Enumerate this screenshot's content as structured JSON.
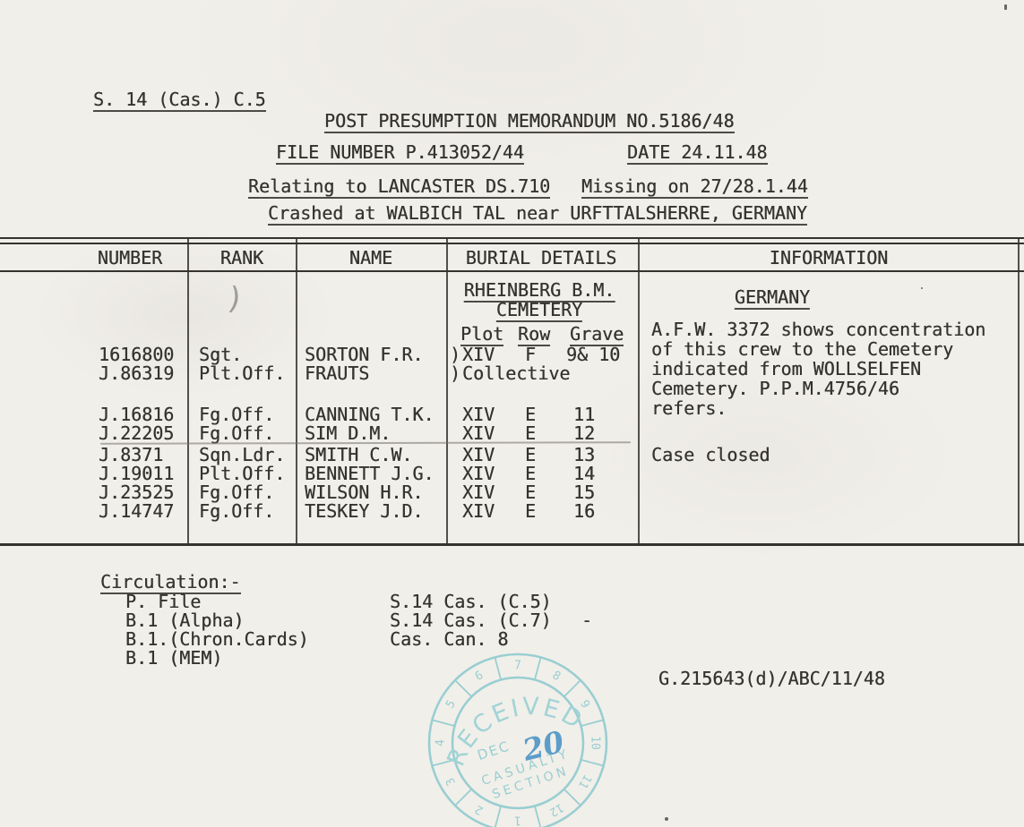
{
  "header": {
    "ref": "S. 14 (Cas.) C.5",
    "title": "POST PRESUMPTION MEMORANDUM NO.5186/48",
    "file_number": "FILE NUMBER P.413052/44",
    "date": "DATE 24.11.48",
    "relating": "Relating to LANCASTER DS.710",
    "missing": "Missing on 27/28.1.44",
    "crashed": "Crashed at WALBICH TAL near URFTTALSHERRE, GERMANY"
  },
  "table": {
    "headers": {
      "number": "NUMBER",
      "rank": "RANK",
      "name": "NAME",
      "burial": "BURIAL DETAILS",
      "information": "INFORMATION"
    },
    "burial_header": {
      "cemetery_line1": "RHEINBERG B.M.",
      "cemetery_line2": "CEMETERY",
      "plot": "Plot",
      "row": "Row",
      "grave": "Grave"
    },
    "rows": [
      {
        "number": "1616800",
        "rank": "Sgt.",
        "name": "SORTON F.R.",
        "brace": ")",
        "plot": "XIV",
        "row": "F",
        "grave": "9& 10"
      },
      {
        "number": "J.86319",
        "rank": "Plt.Off.",
        "name": "FRAUTS",
        "brace": ")",
        "plot": "Collective",
        "row": "",
        "grave": ""
      },
      {
        "number": "J.16816",
        "rank": "Fg.Off.",
        "name": "CANNING T.K.",
        "brace": "",
        "plot": "XIV",
        "row": "E",
        "grave": "11"
      },
      {
        "number": "J.22205",
        "rank": "Fg.Off.",
        "name": "SIM D.M.",
        "brace": "",
        "plot": "XIV",
        "row": "E",
        "grave": "12"
      },
      {
        "number": "J.8371",
        "rank": "Sqn.Ldr.",
        "name": "SMITH C.W.",
        "brace": "",
        "plot": "XIV",
        "row": "E",
        "grave": "13"
      },
      {
        "number": "J.19011",
        "rank": "Plt.Off.",
        "name": "BENNETT J.G.",
        "brace": "",
        "plot": "XIV",
        "row": "E",
        "grave": "14"
      },
      {
        "number": "J.23525",
        "rank": "Fg.Off.",
        "name": "WILSON H.R.",
        "brace": "",
        "plot": "XIV",
        "row": "E",
        "grave": "15"
      },
      {
        "number": "J.14747",
        "rank": "Fg.Off.",
        "name": "TESKEY J.D.",
        "brace": "",
        "plot": "XIV",
        "row": "E",
        "grave": "16"
      }
    ],
    "info": {
      "country": "GERMANY",
      "paragraph": "A.F.W. 3372 shows concentration\nof this crew to the Cemetery\nindicated from WOLLSELFEN\nCemetery.   P.P.M.4756/46\nrefers.",
      "status": "Case closed"
    }
  },
  "circulation": {
    "heading": "Circulation:-",
    "left_items": [
      "P. File",
      "B.1 (Alpha)",
      "B.1.(Chron.Cards)",
      "B.1 (MEM)"
    ],
    "right_items": [
      "S.14 Cas. (C.5)",
      "S.14 Cas. (C.7)",
      "Cas. Can. 8"
    ],
    "dash": "-"
  },
  "reference": "G.215643(d)/ABC/11/48",
  "stamp": {
    "line1": "RECEIVED",
    "month": "DEC",
    "day": "20",
    "dept1": "CASUALTY",
    "dept2": "SECTION",
    "dial_numbers": [
      "1",
      "2",
      "3",
      "4",
      "5",
      "6",
      "7",
      "8",
      "9",
      "10",
      "11",
      "12"
    ]
  },
  "stray_mark": ")"
}
